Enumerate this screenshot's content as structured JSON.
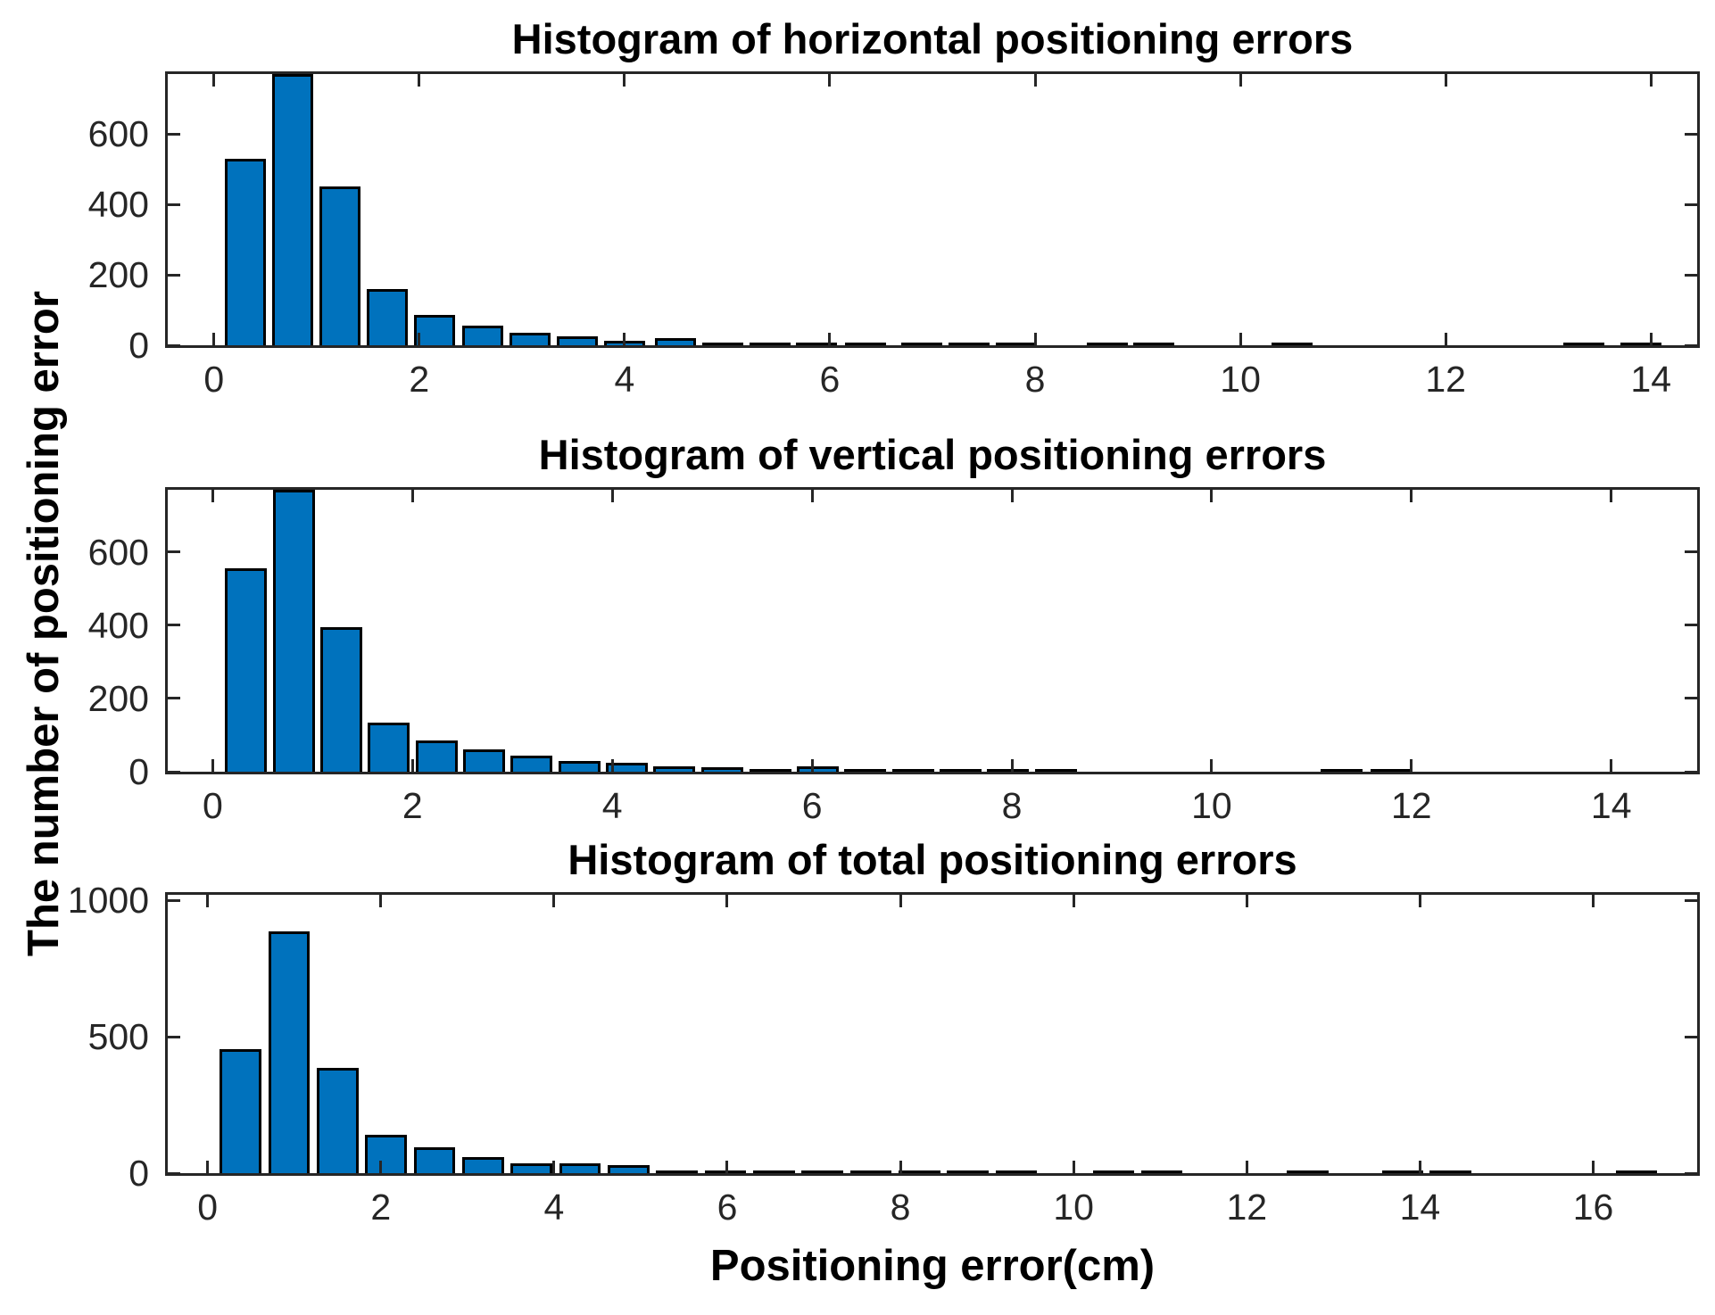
{
  "figure": {
    "background": "#ffffff",
    "axis_color": "#262626",
    "bar_fill": "#0072bd",
    "bar_edge": "#000000",
    "shared_ylabel": "The number of positioning error",
    "shared_xlabel": "Positioning error(cm)"
  },
  "chart_data": [
    {
      "type": "bar",
      "title": "Histogram of horizontal positioning errors",
      "xlabel": "",
      "ylabel": "",
      "xlim": [
        -0.45,
        14.45
      ],
      "ylim": [
        0,
        770
      ],
      "xticks": [
        0,
        2,
        4,
        6,
        8,
        10,
        12,
        14
      ],
      "yticks": [
        0,
        200,
        400,
        600
      ],
      "grid": false,
      "bin_width": 0.4,
      "bars": [
        [
          0.31,
          530
        ],
        [
          0.77,
          770
        ],
        [
          1.23,
          450
        ],
        [
          1.69,
          160
        ],
        [
          2.15,
          85
        ],
        [
          2.62,
          55
        ],
        [
          3.08,
          35
        ],
        [
          3.54,
          25
        ],
        [
          4.0,
          12
        ],
        [
          4.5,
          20
        ],
        [
          4.96,
          8
        ],
        [
          5.42,
          5
        ],
        [
          5.87,
          3
        ],
        [
          6.35,
          2
        ],
        [
          6.9,
          3
        ],
        [
          7.36,
          2
        ],
        [
          7.82,
          2
        ],
        [
          8.7,
          3
        ],
        [
          9.16,
          2
        ],
        [
          10.5,
          2
        ],
        [
          13.35,
          1
        ],
        [
          13.9,
          2
        ]
      ]
    },
    {
      "type": "bar",
      "title": "Histogram of vertical positioning errors",
      "xlabel": "",
      "ylabel": "",
      "xlim": [
        -0.45,
        14.86
      ],
      "ylim": [
        0,
        770
      ],
      "xticks": [
        0,
        2,
        4,
        6,
        8,
        10,
        12,
        14
      ],
      "yticks": [
        0,
        200,
        400,
        600
      ],
      "grid": false,
      "bin_width": 0.42,
      "bars": [
        [
          0.33,
          555
        ],
        [
          0.81,
          770
        ],
        [
          1.29,
          395
        ],
        [
          1.76,
          135
        ],
        [
          2.24,
          85
        ],
        [
          2.72,
          60
        ],
        [
          3.19,
          45
        ],
        [
          3.67,
          30
        ],
        [
          4.15,
          25
        ],
        [
          4.62,
          15
        ],
        [
          5.1,
          12
        ],
        [
          5.58,
          7
        ],
        [
          6.06,
          15
        ],
        [
          6.53,
          7
        ],
        [
          7.01,
          7
        ],
        [
          7.49,
          5
        ],
        [
          7.96,
          3
        ],
        [
          8.44,
          3
        ],
        [
          11.3,
          2
        ],
        [
          11.8,
          2
        ]
      ]
    },
    {
      "type": "bar",
      "title": "Histogram of total positioning errors",
      "xlabel": "",
      "ylabel": "",
      "xlim": [
        -0.46,
        17.2
      ],
      "ylim": [
        0,
        1020
      ],
      "xticks": [
        0,
        2,
        4,
        6,
        8,
        10,
        12,
        14,
        16
      ],
      "yticks": [
        0,
        500,
        1000
      ],
      "grid": false,
      "bin_width": 0.48,
      "bars": [
        [
          0.38,
          455
        ],
        [
          0.94,
          885
        ],
        [
          1.5,
          385
        ],
        [
          2.06,
          140
        ],
        [
          2.62,
          95
        ],
        [
          3.18,
          60
        ],
        [
          3.74,
          35
        ],
        [
          4.3,
          35
        ],
        [
          4.86,
          30
        ],
        [
          5.42,
          5
        ],
        [
          5.98,
          10
        ],
        [
          6.54,
          8
        ],
        [
          7.1,
          9
        ],
        [
          7.66,
          8
        ],
        [
          8.22,
          4
        ],
        [
          8.78,
          5
        ],
        [
          9.34,
          2
        ],
        [
          10.46,
          2
        ],
        [
          11.02,
          2
        ],
        [
          12.7,
          2
        ],
        [
          13.8,
          2
        ],
        [
          14.35,
          2
        ],
        [
          16.5,
          2
        ]
      ]
    }
  ]
}
